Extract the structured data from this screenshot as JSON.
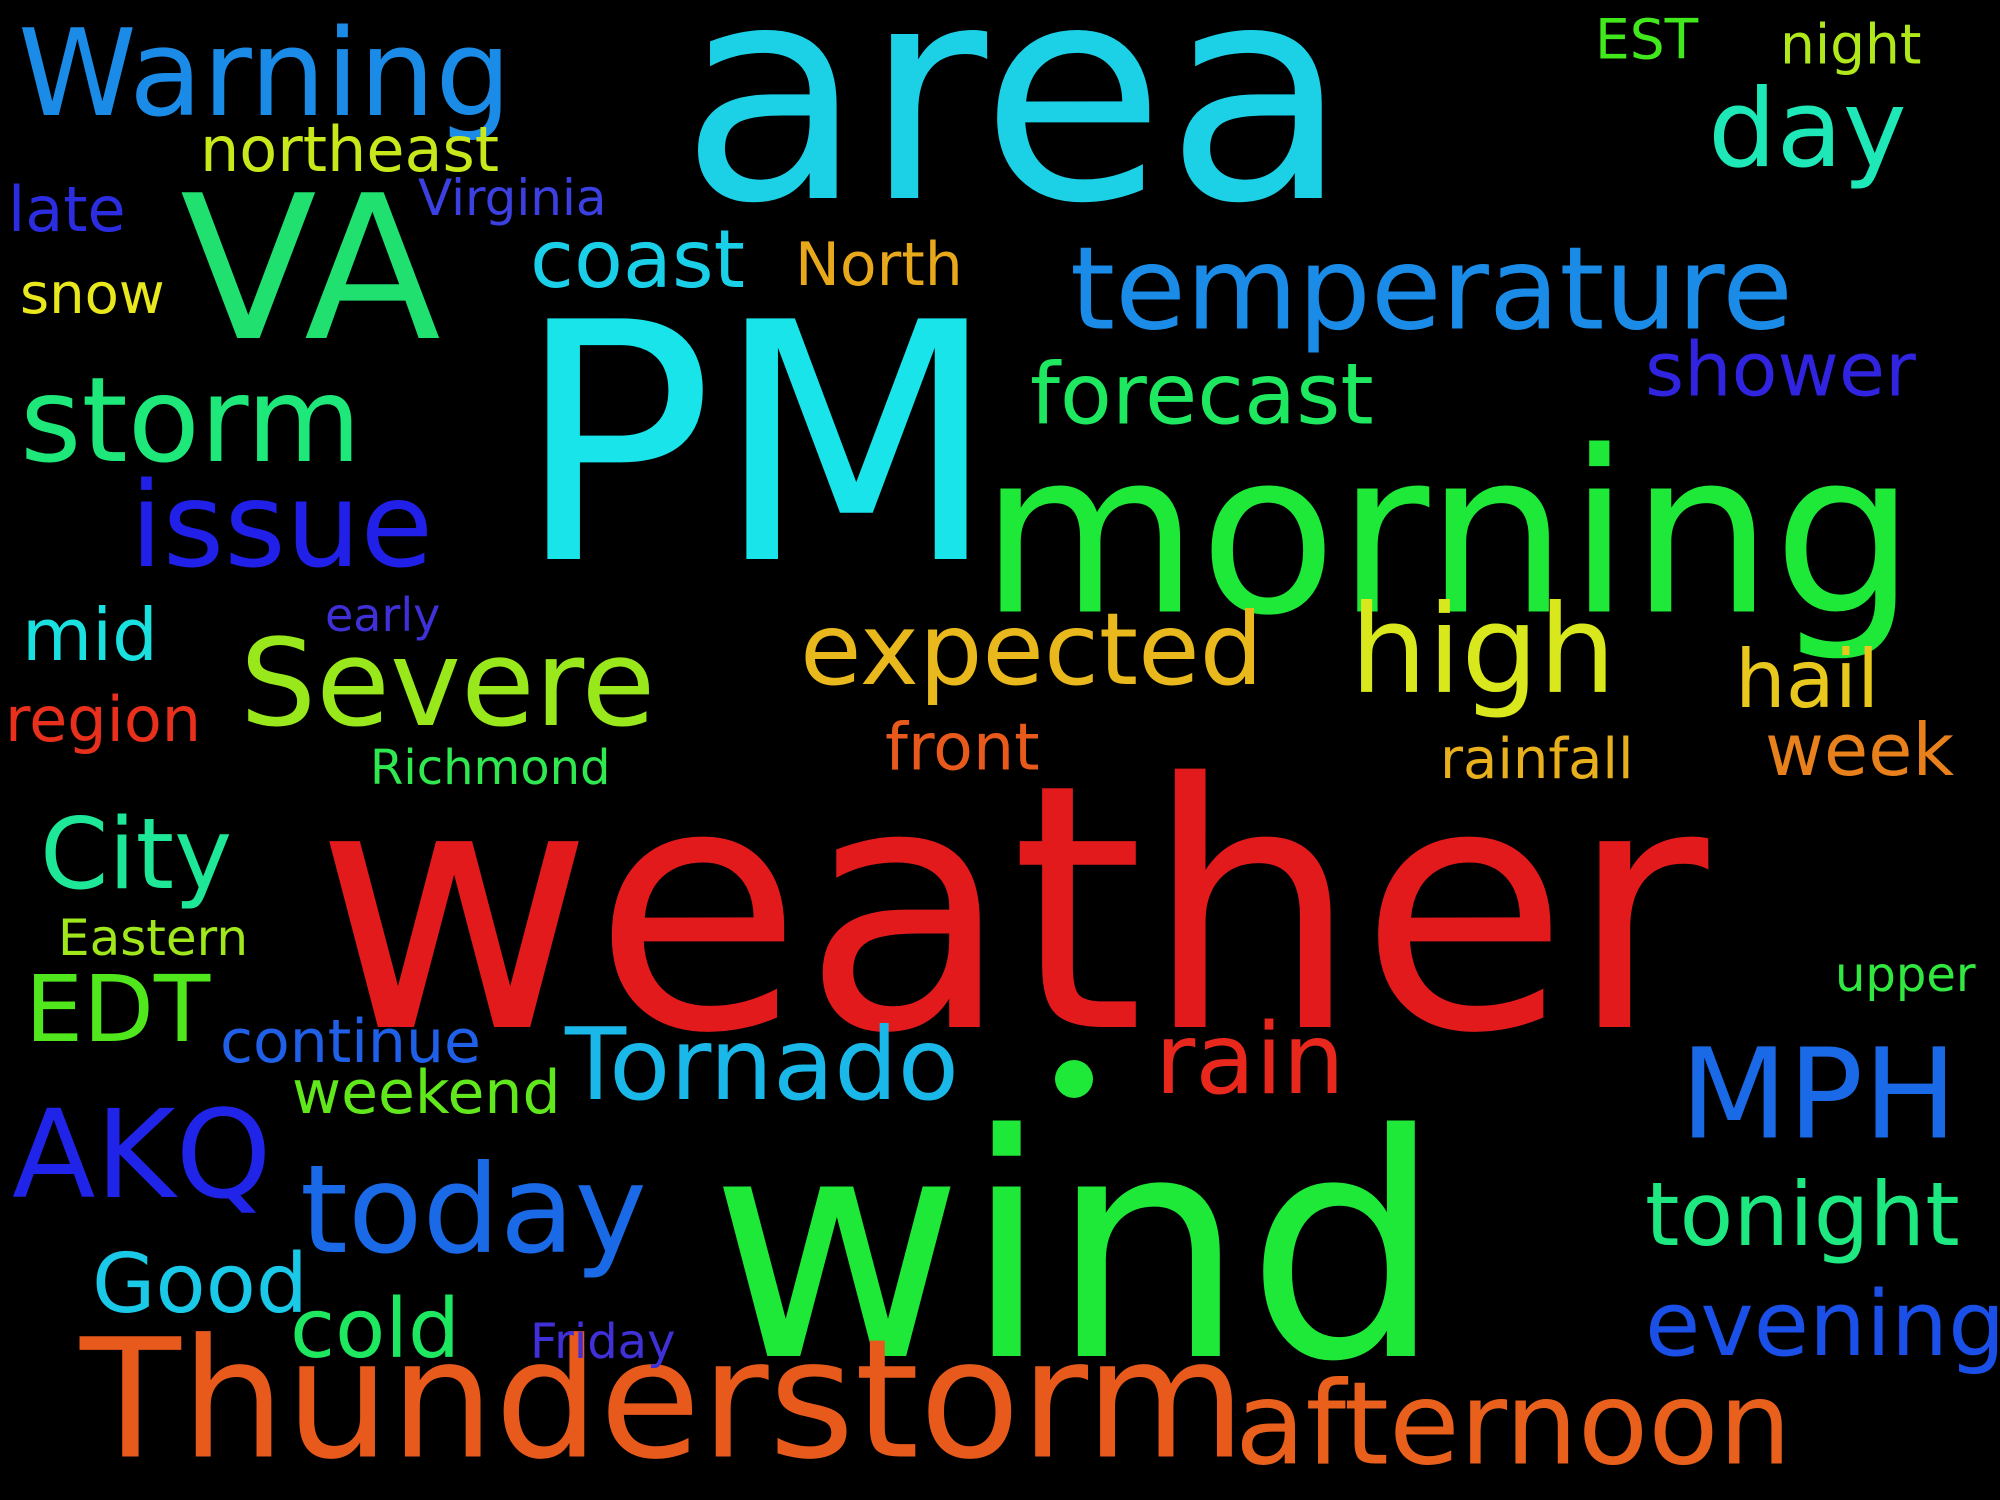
{
  "background": "#000000",
  "words": [
    {
      "text": "area",
      "color": "#1cd0e6"
    },
    {
      "text": "PM",
      "color": "#18e4ea"
    },
    {
      "text": "weather",
      "color": "#e31a1c"
    },
    {
      "text": "wind",
      "color": "#1ee838"
    },
    {
      "text": "morning",
      "color": "#1ee838"
    },
    {
      "text": "Thunderstorm",
      "color": "#e85a1c"
    },
    {
      "text": "VA",
      "color": "#20e070"
    },
    {
      "text": "Warning",
      "color": "#1a8ce8"
    },
    {
      "text": "temperature",
      "color": "#1a8ce8"
    },
    {
      "text": "afternoon",
      "color": "#e8601c"
    },
    {
      "text": "Severe",
      "color": "#98e81c"
    },
    {
      "text": "storm",
      "color": "#1ee87a"
    },
    {
      "text": "issue",
      "color": "#2020e8"
    },
    {
      "text": "high",
      "color": "#d8e81c"
    },
    {
      "text": "today",
      "color": "#1a6ae8"
    },
    {
      "text": "expected",
      "color": "#e8b81c"
    },
    {
      "text": "Tornado",
      "color": "#1ab8e8"
    },
    {
      "text": "MPH",
      "color": "#1a6ae8"
    },
    {
      "text": "AKQ",
      "color": "#2024e8"
    },
    {
      "text": "day",
      "color": "#1ee8b8"
    },
    {
      "text": "City",
      "color": "#1ee898"
    },
    {
      "text": "rain",
      "color": "#e8281c"
    },
    {
      "text": "forecast",
      "color": "#1ee860"
    },
    {
      "text": "coast",
      "color": "#1ad0e8"
    },
    {
      "text": "tonight",
      "color": "#1ee880"
    },
    {
      "text": "evening",
      "color": "#1a50e8"
    },
    {
      "text": "EDT",
      "color": "#50e81c"
    },
    {
      "text": "Good",
      "color": "#1ac8e8"
    },
    {
      "text": "cold",
      "color": "#1ee860"
    },
    {
      "text": "shower",
      "color": "#3024e0"
    },
    {
      "text": "hail",
      "color": "#e8c81c"
    },
    {
      "text": "week",
      "color": "#e8801c"
    },
    {
      "text": "northeast",
      "color": "#c8e81c"
    },
    {
      "text": "mid",
      "color": "#1ae0e0"
    },
    {
      "text": "late",
      "color": "#2c2ce0"
    },
    {
      "text": "front",
      "color": "#e85a1c"
    },
    {
      "text": "region",
      "color": "#e8301c"
    },
    {
      "text": "continue",
      "color": "#2060e8"
    },
    {
      "text": "weekend",
      "color": "#60e81c"
    },
    {
      "text": "North",
      "color": "#e8a81c"
    },
    {
      "text": "snow",
      "color": "#e8e81c"
    },
    {
      "text": "rainfall",
      "color": "#e8b01c"
    },
    {
      "text": "Virginia",
      "color": "#3c40e0"
    },
    {
      "text": "night",
      "color": "#b0e81c"
    },
    {
      "text": "EST",
      "color": "#40e81c"
    },
    {
      "text": "Eastern",
      "color": "#a0e81c"
    },
    {
      "text": "Richmond",
      "color": "#30e850"
    },
    {
      "text": "upper",
      "color": "#30e840"
    },
    {
      "text": "early",
      "color": "#4030d8"
    },
    {
      "text": "Friday",
      "color": "#4030d8"
    }
  ]
}
